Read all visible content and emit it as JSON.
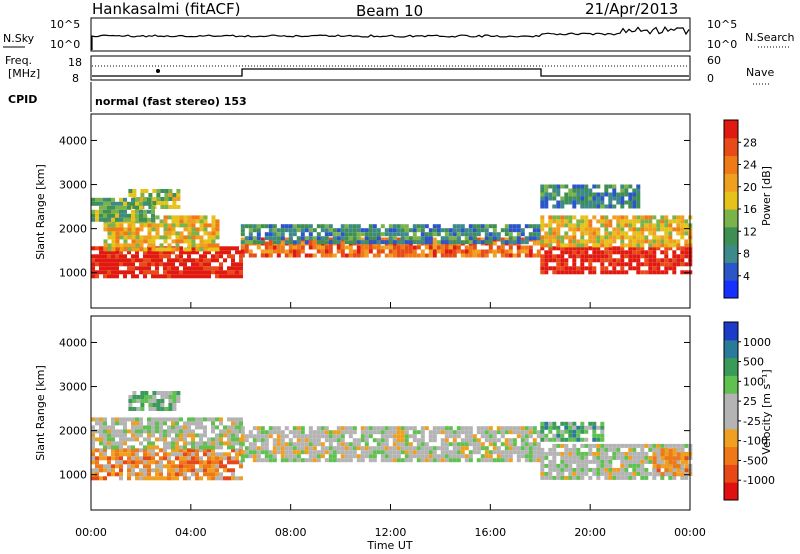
{
  "header": {
    "station": "Hankasalmi (fitACF)",
    "beam": "Beam 10",
    "date": "21/Apr/2013"
  },
  "status_panel": {
    "nsky_label": "N.Sky",
    "nsearch_label": "N.Search",
    "freq_label": "Freq.",
    "freq_unit": "[MHz]",
    "nave_label": "Nave",
    "cpid_label": "CPID",
    "noise_ticks_left": [
      "10^5",
      "10^0"
    ],
    "noise_ticks_right": [
      "10^5",
      "10^0"
    ],
    "freq_ticks": [
      "18",
      "8"
    ],
    "nave_ticks": [
      "60",
      "0"
    ],
    "cpid_text": "normal (fast stereo) 153"
  },
  "chart_data": [
    {
      "type": "heatmap",
      "title": "",
      "ylabel": "Slant Range [km]",
      "xlabel": "",
      "y_ticks": [
        "1000",
        "2000",
        "3000",
        "4000"
      ],
      "ylim": [
        200,
        4600
      ],
      "xlim_hours": [
        0,
        24
      ],
      "colorbar": {
        "label": "Power [dB]",
        "ticks": [
          "4",
          "8",
          "12",
          "16",
          "20",
          "24",
          "28"
        ],
        "colors": [
          "#1530ff",
          "#2b55c8",
          "#3e8a8a",
          "#3f8f55",
          "#7ab34a",
          "#e6c21a",
          "#f0a020",
          "#f07a18",
          "#e84a18",
          "#e01a10"
        ],
        "range": [
          0,
          30
        ]
      },
      "bands": [
        {
          "t0": 0.0,
          "t1": 6.0,
          "r0": 950,
          "r1": 1600,
          "level": 9
        },
        {
          "t0": 0.5,
          "t1": 5.0,
          "r0": 1500,
          "r1": 2300,
          "level": 5
        },
        {
          "t0": 1.5,
          "t1": 3.5,
          "r0": 2500,
          "r1": 2900,
          "level": 4
        },
        {
          "t0": 0.0,
          "t1": 2.5,
          "r0": 2200,
          "r1": 2700,
          "level": 3
        },
        {
          "t0": 6.0,
          "t1": 18.0,
          "r0": 1400,
          "r1": 1800,
          "level": 7
        },
        {
          "t0": 6.0,
          "t1": 18.0,
          "r0": 1700,
          "r1": 2100,
          "level": 2
        },
        {
          "t0": 18.0,
          "t1": 24.0,
          "r0": 1000,
          "r1": 1600,
          "level": 9
        },
        {
          "t0": 18.0,
          "t1": 24.0,
          "r0": 1600,
          "r1": 2300,
          "level": 5
        },
        {
          "t0": 18.0,
          "t1": 22.0,
          "r0": 2500,
          "r1": 3000,
          "level": 2
        }
      ]
    },
    {
      "type": "heatmap",
      "title": "",
      "ylabel": "Slant Range [km]",
      "xlabel": "Time UT",
      "y_ticks": [
        "1000",
        "2000",
        "3000",
        "4000"
      ],
      "ylim": [
        200,
        4600
      ],
      "xlim_hours": [
        0,
        24
      ],
      "x_ticks": [
        "00:00",
        "04:00",
        "08:00",
        "12:00",
        "16:00",
        "20:00",
        "00:00"
      ],
      "colorbar": {
        "label": "Velocity [m s⁻¹]",
        "ticks": [
          "1000",
          "500",
          "100",
          "25",
          "-25",
          "-100",
          "-500",
          "-1000"
        ],
        "colors": [
          "#1a3cc8",
          "#2a7a9a",
          "#3a9a5a",
          "#60c050",
          "#b4b4b4",
          "#b4b4b4",
          "#f0a020",
          "#f07818",
          "#e84818",
          "#e01010"
        ],
        "range": [
          -1000,
          1000
        ]
      },
      "bands": [
        {
          "t0": 0.0,
          "t1": 6.0,
          "r0": 950,
          "r1": 1600,
          "level": 6
        },
        {
          "t0": 0.0,
          "t1": 6.0,
          "r0": 1600,
          "r1": 2300,
          "level": 4
        },
        {
          "t0": 1.5,
          "t1": 3.5,
          "r0": 2500,
          "r1": 2900,
          "level": 3
        },
        {
          "t0": 6.0,
          "t1": 18.0,
          "r0": 1300,
          "r1": 2100,
          "level": 4
        },
        {
          "t0": 18.0,
          "t1": 24.0,
          "r0": 900,
          "r1": 1700,
          "level": 4
        },
        {
          "t0": 18.0,
          "t1": 20.5,
          "r0": 1800,
          "r1": 2200,
          "level": 2
        },
        {
          "t0": 22.5,
          "t1": 23.8,
          "r0": 1000,
          "r1": 1600,
          "level": 6
        }
      ]
    }
  ]
}
